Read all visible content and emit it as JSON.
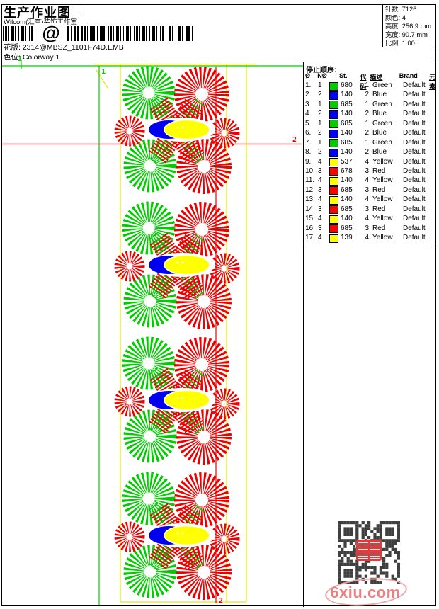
{
  "page": {
    "title": "生产作业图",
    "company": "Wilcom(汇京)装饰工作室",
    "barcode_glyph": "@",
    "design_label": "花版:",
    "design_value": "2314@MBSZ_1101F74D.EMB",
    "colorway_label": "色位:",
    "colorway_value": "Colorway 1"
  },
  "stats": {
    "rows": [
      {
        "label": "针数:",
        "value": "7126"
      },
      {
        "label": "颜色:",
        "value": "4"
      },
      {
        "label": "高度:",
        "value": "256.9 mm"
      },
      {
        "label": "宽度:",
        "value": "90.7 mm"
      },
      {
        "label": "比例:",
        "value": "1.00"
      }
    ]
  },
  "stop_sequence": {
    "title": "停止顺序:",
    "columns": [
      "Ø",
      "NØ",
      "St.",
      "代码",
      "描述",
      "Brand",
      "元素"
    ],
    "rows": [
      {
        "idx": "1.",
        "needle": "1",
        "color": "#00cc00",
        "st": "680",
        "code": "1",
        "desc": "Green",
        "brand": "Default",
        "element": ""
      },
      {
        "idx": "2.",
        "needle": "2",
        "color": "#0000ff",
        "st": "140",
        "code": "2",
        "desc": "Blue",
        "brand": "Default",
        "element": ""
      },
      {
        "idx": "3.",
        "needle": "1",
        "color": "#00cc00",
        "st": "685",
        "code": "1",
        "desc": "Green",
        "brand": "Default",
        "element": ""
      },
      {
        "idx": "4.",
        "needle": "2",
        "color": "#0000ff",
        "st": "140",
        "code": "2",
        "desc": "Blue",
        "brand": "Default",
        "element": ""
      },
      {
        "idx": "5.",
        "needle": "1",
        "color": "#00cc00",
        "st": "685",
        "code": "1",
        "desc": "Green",
        "brand": "Default",
        "element": ""
      },
      {
        "idx": "6.",
        "needle": "2",
        "color": "#0000ff",
        "st": "140",
        "code": "2",
        "desc": "Blue",
        "brand": "Default",
        "element": ""
      },
      {
        "idx": "7.",
        "needle": "1",
        "color": "#00cc00",
        "st": "685",
        "code": "1",
        "desc": "Green",
        "brand": "Default",
        "element": ""
      },
      {
        "idx": "8.",
        "needle": "2",
        "color": "#0000ff",
        "st": "140",
        "code": "2",
        "desc": "Blue",
        "brand": "Default",
        "element": ""
      },
      {
        "idx": "9.",
        "needle": "4",
        "color": "#ffff00",
        "st": "537",
        "code": "4",
        "desc": "Yellow",
        "brand": "Default",
        "element": ""
      },
      {
        "idx": "10.",
        "needle": "3",
        "color": "#ff0000",
        "st": "678",
        "code": "3",
        "desc": "Red",
        "brand": "Default",
        "element": ""
      },
      {
        "idx": "11.",
        "needle": "4",
        "color": "#ffff00",
        "st": "140",
        "code": "4",
        "desc": "Yellow",
        "brand": "Default",
        "element": ""
      },
      {
        "idx": "12.",
        "needle": "3",
        "color": "#ff0000",
        "st": "685",
        "code": "3",
        "desc": "Red",
        "brand": "Default",
        "element": ""
      },
      {
        "idx": "13.",
        "needle": "4",
        "color": "#ffff00",
        "st": "140",
        "code": "4",
        "desc": "Yellow",
        "brand": "Default",
        "element": ""
      },
      {
        "idx": "14.",
        "needle": "3",
        "color": "#ff0000",
        "st": "685",
        "code": "3",
        "desc": "Red",
        "brand": "Default",
        "element": ""
      },
      {
        "idx": "15.",
        "needle": "4",
        "color": "#ffff00",
        "st": "140",
        "code": "4",
        "desc": "Yellow",
        "brand": "Default",
        "element": ""
      },
      {
        "idx": "16.",
        "needle": "3",
        "color": "#ff0000",
        "st": "685",
        "code": "3",
        "desc": "Red",
        "brand": "Default",
        "element": ""
      },
      {
        "idx": "17.",
        "needle": "4",
        "color": "#ffff00",
        "st": "139",
        "code": "4",
        "desc": "Yellow",
        "brand": "Default",
        "element": ""
      }
    ]
  },
  "markers": {
    "start": "1",
    "end": "2"
  },
  "watermark": {
    "text": "6xiu.com"
  },
  "design_colors": {
    "green": "#00cc00",
    "red": "#ee0000",
    "yellow": "#ffff00",
    "blue": "#0000ee"
  }
}
